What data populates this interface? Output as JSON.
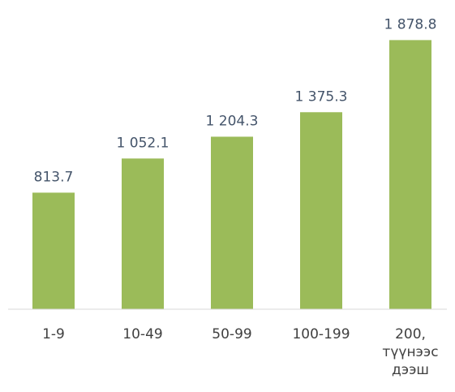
{
  "chart_data": {
    "type": "bar",
    "categories": [
      "1-9",
      "10-49",
      "50-99",
      "100-199",
      "200, түүнээс дээш"
    ],
    "values": [
      813.7,
      1052.1,
      1204.3,
      1375.3,
      1878.8
    ],
    "value_labels": [
      "813.7",
      "1 052.1",
      "1 204.3",
      "1 375.3",
      "1 878.8"
    ],
    "color": "#9bbb59",
    "ylim": [
      0,
      2000
    ]
  }
}
